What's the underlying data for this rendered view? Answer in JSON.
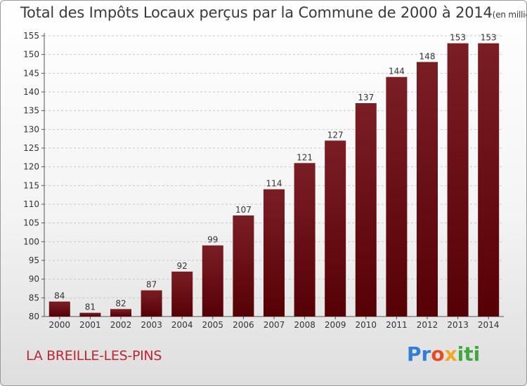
{
  "title": "Total des Impôts Locaux perçus par la Commune de 2000 à 2014",
  "title_unit": "(en milliers d'€)",
  "commune": "LA BREILLE-LES-PINS",
  "logo": "Proxiti",
  "colors": {
    "bar": "#7a1e24",
    "bar_dark": "#560006",
    "grid": "#c8c8c8"
  },
  "chart_data": {
    "type": "bar",
    "title": "Total des Impôts Locaux perçus par la Commune de 2000 à 2014",
    "ylabel": "en milliers d'€",
    "xlabel": "",
    "categories": [
      "2000",
      "2001",
      "2002",
      "2003",
      "2004",
      "2005",
      "2006",
      "2007",
      "2008",
      "2009",
      "2010",
      "2011",
      "2012",
      "2013",
      "2014"
    ],
    "values": [
      84,
      81,
      82,
      87,
      92,
      99,
      107,
      114,
      121,
      127,
      137,
      144,
      148,
      153,
      153
    ],
    "ylim": [
      80,
      155
    ],
    "yticks": [
      80,
      85,
      90,
      95,
      100,
      105,
      110,
      115,
      120,
      125,
      130,
      135,
      140,
      145,
      150,
      155
    ],
    "grid": true
  }
}
